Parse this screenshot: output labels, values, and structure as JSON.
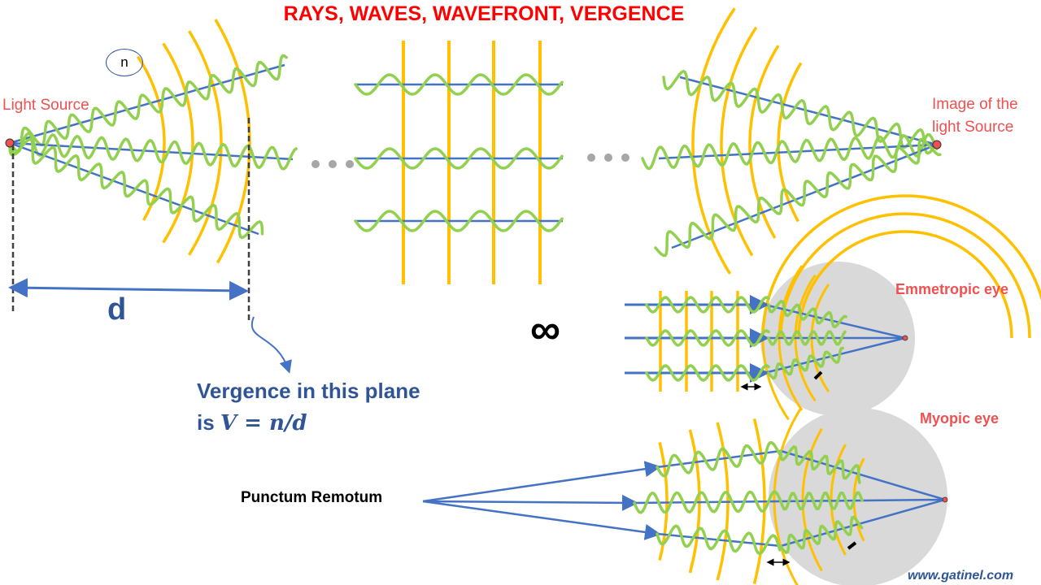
{
  "title": "RAYS, WAVES, WAVEFRONT, VERGENCE",
  "medium_label": "n",
  "light_source_label": "Light Source",
  "image_label_line1": "Image of the",
  "image_label_line2": "light Source",
  "distance_label": "d",
  "infinity_symbol": "∞",
  "vergence_line1": "Vergence in this plane",
  "vergence_line2_prefix": "is ",
  "vergence_formula": "V = n/d",
  "emmetropic_label": "Emmetropic eye",
  "myopic_label": "Myopic eye",
  "punctum_label": "Punctum Remotum",
  "credit": "www.gatinel.com",
  "colors": {
    "title": "#ff0000",
    "ray": "#4472c4",
    "wave": "#92d050",
    "wavefront": "#ffc000",
    "label": "#f0504f",
    "eye": "#d9d9d9",
    "text_blue": "#2f5597"
  }
}
